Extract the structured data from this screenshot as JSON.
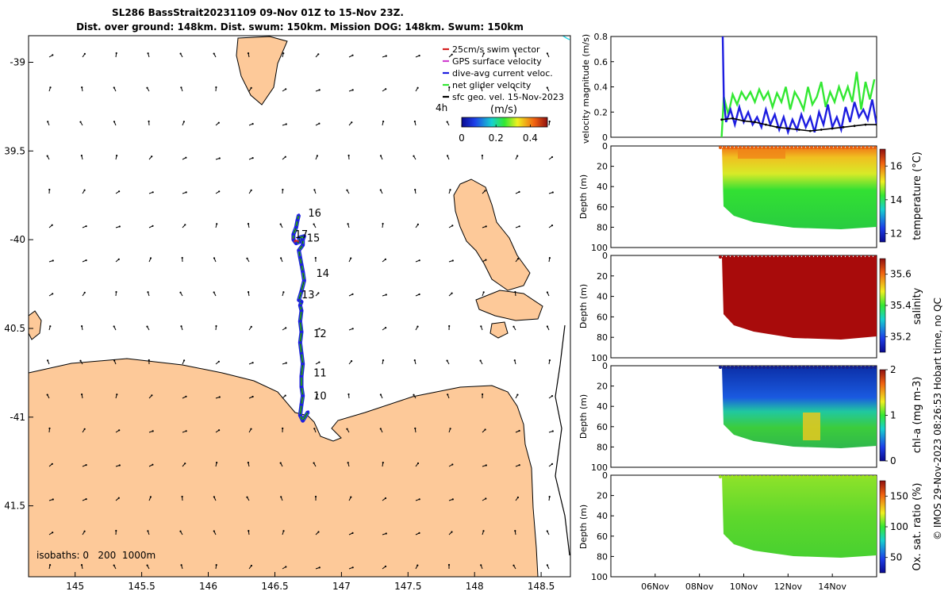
{
  "title": {
    "line1": "SL286 BassStrait20231109 09-Nov 01Z to 15-Nov 23Z.",
    "line2": "Dist. over ground: 148km. Dist. swum: 150km. Mission DOG: 148km. Swum: 150km"
  },
  "footer": "© IMOS 29-Nov-2023 08:26:53 Hobart time, no QC",
  "colors": {
    "land": "#fdc999",
    "ocean": "#ffffff",
    "coast": "#000000",
    "swim": "#d62020",
    "gps": "#d040d0",
    "dive": "#1d1de0",
    "net": "#33e833",
    "sfc": "#000000",
    "track_line": "#101010"
  },
  "chart_data": [
    {
      "type": "scatter",
      "name": "glider-track-map",
      "xlabel": "",
      "ylabel": "",
      "xlim": [
        144.65,
        148.72
      ],
      "ylim": [
        -41.9,
        -38.85
      ],
      "x_ticks": [
        145,
        145.5,
        146,
        146.5,
        147,
        147.5,
        148,
        148.5
      ],
      "x_tick_labels": [
        "145",
        "145.5",
        "146",
        "146.5",
        "147",
        "147.5",
        "148",
        "148.5"
      ],
      "y_ticks": [
        -39,
        -39.5,
        -40,
        -40.5,
        -41,
        -41.5
      ],
      "y_tick_labels": [
        "-39",
        "39.5",
        "-40",
        "40.5",
        "-41",
        "41.5"
      ],
      "legend": {
        "position": "top-right",
        "entries": [
          {
            "label": "25cm/s swim vector",
            "color": "#d62020"
          },
          {
            "label": "GPS surface velocity",
            "color": "#d040d0"
          },
          {
            "label": "dive-avg current veloc.",
            "color": "#1d1de0"
          },
          {
            "label": "net glider velocity",
            "color": "#33e833"
          },
          {
            "label": "sfc geo. vel. 15-Nov-2023",
            "color": "#000000"
          }
        ]
      },
      "colorbar": {
        "label": "(m/s)",
        "ticks": [
          "0",
          "0.2",
          "0.4"
        ],
        "min": 0,
        "max": 0.5,
        "note": "4h"
      },
      "annotation": "isobaths: 0   200  1000m",
      "track": {
        "x": [
          146.75,
          146.71,
          146.69,
          146.7,
          146.71,
          146.7,
          146.7,
          146.71,
          146.7,
          146.69,
          146.7,
          146.69,
          146.7,
          146.69,
          146.7,
          146.68,
          146.7,
          146.72,
          146.71,
          146.7,
          146.69,
          146.68,
          146.71,
          146.71,
          146.72,
          146.68,
          146.69,
          146.66,
          146.64,
          146.64,
          146.66,
          146.67,
          146.68
        ],
        "y": [
          -40.97,
          -41.02,
          -40.99,
          -40.93,
          -40.88,
          -40.83,
          -40.77,
          -40.7,
          -40.64,
          -40.58,
          -40.52,
          -40.46,
          -40.4,
          -40.37,
          -40.35,
          -40.34,
          -40.29,
          -40.23,
          -40.18,
          -40.14,
          -40.1,
          -40.06,
          -40.03,
          -40.0,
          -39.98,
          -39.99,
          -40.01,
          -40.02,
          -40.0,
          -39.97,
          -39.93,
          -39.89,
          -39.86
        ]
      },
      "day_labels": [
        {
          "text": "10",
          "x": 146.79,
          "y": -40.9
        },
        {
          "text": "11",
          "x": 146.79,
          "y": -40.77
        },
        {
          "text": "12",
          "x": 146.79,
          "y": -40.55
        },
        {
          "text": "13",
          "x": 146.7,
          "y": -40.33
        },
        {
          "text": "14",
          "x": 146.81,
          "y": -40.21
        },
        {
          "text": "15",
          "x": 146.74,
          "y": -40.01
        },
        {
          "text": "16",
          "x": 146.75,
          "y": -39.87
        },
        {
          "text": "17",
          "x": 146.65,
          "y": -39.99
        }
      ]
    },
    {
      "type": "line",
      "name": "velocity-magnitude",
      "ylabel": "velocity magnitude (m/s)",
      "ylim": [
        0,
        0.8
      ],
      "y_ticks": [
        0,
        0.2,
        0.4,
        0.6,
        0.8
      ],
      "y_tick_labels": [
        "0",
        "0.2",
        "0.4",
        "0.6",
        "0.8"
      ],
      "xlim": [
        4.0,
        16.0
      ],
      "series": [
        {
          "name": "net glider velocity",
          "color": "#33e833",
          "x": [
            9.0,
            9.1,
            9.3,
            9.5,
            9.7,
            9.9,
            10.1,
            10.3,
            10.5,
            10.7,
            10.9,
            11.1,
            11.3,
            11.5,
            11.7,
            11.9,
            12.1,
            12.3,
            12.5,
            12.7,
            12.9,
            13.1,
            13.3,
            13.5,
            13.7,
            13.9,
            14.1,
            14.3,
            14.5,
            14.7,
            14.9,
            15.1,
            15.3,
            15.5,
            15.7,
            15.9
          ],
          "y": [
            0.0,
            0.32,
            0.18,
            0.34,
            0.26,
            0.36,
            0.3,
            0.36,
            0.28,
            0.38,
            0.3,
            0.36,
            0.24,
            0.35,
            0.28,
            0.4,
            0.22,
            0.36,
            0.3,
            0.22,
            0.4,
            0.26,
            0.32,
            0.44,
            0.24,
            0.36,
            0.28,
            0.4,
            0.3,
            0.4,
            0.28,
            0.52,
            0.22,
            0.44,
            0.3,
            0.46
          ]
        },
        {
          "name": "dive-avg current veloc.",
          "color": "#1d1de0",
          "x": [
            9.05,
            9.1,
            9.2,
            9.4,
            9.6,
            9.8,
            10.0,
            10.2,
            10.4,
            10.6,
            10.8,
            11.0,
            11.2,
            11.4,
            11.6,
            11.8,
            12.0,
            12.2,
            12.4,
            12.6,
            12.8,
            13.0,
            13.2,
            13.4,
            13.6,
            13.8,
            14.0,
            14.2,
            14.4,
            14.6,
            14.8,
            15.0,
            15.2,
            15.4,
            15.6,
            15.8,
            16.0
          ],
          "y": [
            0.8,
            0.3,
            0.12,
            0.22,
            0.1,
            0.24,
            0.12,
            0.2,
            0.1,
            0.16,
            0.08,
            0.22,
            0.1,
            0.18,
            0.06,
            0.16,
            0.04,
            0.14,
            0.06,
            0.18,
            0.08,
            0.16,
            0.04,
            0.2,
            0.1,
            0.26,
            0.08,
            0.16,
            0.06,
            0.24,
            0.12,
            0.28,
            0.16,
            0.22,
            0.14,
            0.3,
            0.1
          ]
        },
        {
          "name": "sfc geo. vel.",
          "color": "#000000",
          "x": [
            9.0,
            9.5,
            10.0,
            10.5,
            11.0,
            11.5,
            12.0,
            12.5,
            13.0,
            13.5,
            14.0,
            14.5,
            15.0,
            15.5,
            16.0
          ],
          "y": [
            0.14,
            0.15,
            0.13,
            0.12,
            0.1,
            0.08,
            0.07,
            0.06,
            0.05,
            0.06,
            0.07,
            0.08,
            0.09,
            0.1,
            0.1
          ]
        }
      ]
    },
    {
      "type": "heatmap",
      "name": "temperature-section",
      "ylabel": "Depth (m)",
      "ylim": [
        100,
        0
      ],
      "y_ticks": [
        0,
        20,
        40,
        60,
        80,
        100
      ],
      "y_tick_labels": [
        "0",
        "20",
        "40",
        "60",
        "80",
        "100"
      ],
      "colorbar": {
        "label": "temperature (°C)",
        "ticks": [
          "12",
          "14",
          "16"
        ],
        "min": 11.5,
        "max": 17
      }
    },
    {
      "type": "heatmap",
      "name": "salinity-section",
      "ylabel": "Depth (m)",
      "ylim": [
        100,
        0
      ],
      "y_ticks": [
        0,
        20,
        40,
        60,
        80,
        100
      ],
      "y_tick_labels": [
        "0",
        "20",
        "40",
        "60",
        "80",
        "100"
      ],
      "colorbar": {
        "label": "salinity",
        "ticks": [
          "35.2",
          "35.4",
          "35.6"
        ],
        "min": 35.1,
        "max": 35.7
      }
    },
    {
      "type": "heatmap",
      "name": "chlorophyll-section",
      "ylabel": "Depth (m)",
      "ylim": [
        100,
        0
      ],
      "y_ticks": [
        0,
        20,
        40,
        60,
        80,
        100
      ],
      "y_tick_labels": [
        "0",
        "20",
        "40",
        "60",
        "80",
        "100"
      ],
      "colorbar": {
        "label": "chl-a (mg m-3)",
        "ticks": [
          "0",
          "1",
          "2"
        ],
        "min": 0,
        "max": 2
      }
    },
    {
      "type": "heatmap",
      "name": "oxygen-section",
      "ylabel": "Depth (m)",
      "ylim": [
        100,
        0
      ],
      "y_ticks": [
        0,
        20,
        40,
        60,
        80,
        100
      ],
      "y_tick_labels": [
        "0",
        "20",
        "40",
        "60",
        "80",
        "100"
      ],
      "colorbar": {
        "label": "Ox. sat. ratio (%)",
        "ticks": [
          "50",
          "100",
          "150"
        ],
        "min": 25,
        "max": 175
      },
      "x_ticks": [
        6,
        8,
        10,
        12,
        14
      ],
      "x_tick_labels": [
        "06Nov",
        "08Nov",
        "10Nov",
        "12Nov",
        "14Nov"
      ]
    }
  ]
}
